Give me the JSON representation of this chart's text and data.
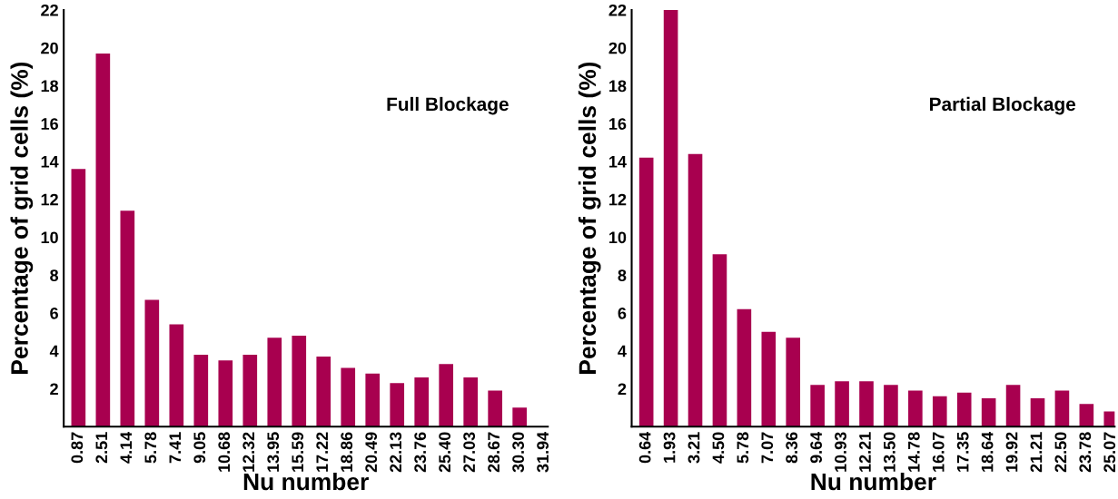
{
  "chart_data": [
    {
      "type": "bar",
      "title": "Full Blockage",
      "xlabel": "Nu number",
      "ylabel": "Percentage of grid cells (%)",
      "color": "#a8004f",
      "categories": [
        "0.87",
        "2.51",
        "4.14",
        "5.78",
        "7.41",
        "9.05",
        "10.68",
        "12.32",
        "13.95",
        "15.59",
        "17.22",
        "18.86",
        "20.49",
        "22.13",
        "23.76",
        "25.40",
        "27.03",
        "28.67",
        "30.30",
        "31.94"
      ],
      "values": [
        13.6,
        19.7,
        11.4,
        6.7,
        5.4,
        3.8,
        3.5,
        3.8,
        4.7,
        4.8,
        3.7,
        3.1,
        2.8,
        2.3,
        2.6,
        3.3,
        2.6,
        1.9,
        1.0,
        0
      ],
      "ylim": [
        0,
        22
      ],
      "yticks": [
        2,
        4,
        6,
        8,
        10,
        12,
        14,
        16,
        18,
        20,
        22
      ],
      "grid": false,
      "legend": false
    },
    {
      "type": "bar",
      "title": "Partial Blockage",
      "xlabel": "Nu number",
      "ylabel": "Percentage of grid cells (%)",
      "color": "#a8004f",
      "categories": [
        "0.64",
        "1.93",
        "3.21",
        "4.50",
        "5.78",
        "7.07",
        "8.36",
        "9.64",
        "10.93",
        "12.21",
        "13.50",
        "14.78",
        "16.07",
        "17.35",
        "18.64",
        "19.92",
        "21.21",
        "22.50",
        "23.78",
        "25.07"
      ],
      "values": [
        14.2,
        22.0,
        14.4,
        9.1,
        6.2,
        5.0,
        4.7,
        2.2,
        2.4,
        2.4,
        2.2,
        1.9,
        1.6,
        1.8,
        1.5,
        2.2,
        1.5,
        1.9,
        1.2,
        0.8
      ],
      "ylim": [
        0,
        22
      ],
      "yticks": [
        2,
        4,
        6,
        8,
        10,
        12,
        14,
        16,
        18,
        20,
        22
      ],
      "grid": false,
      "legend": false
    }
  ]
}
